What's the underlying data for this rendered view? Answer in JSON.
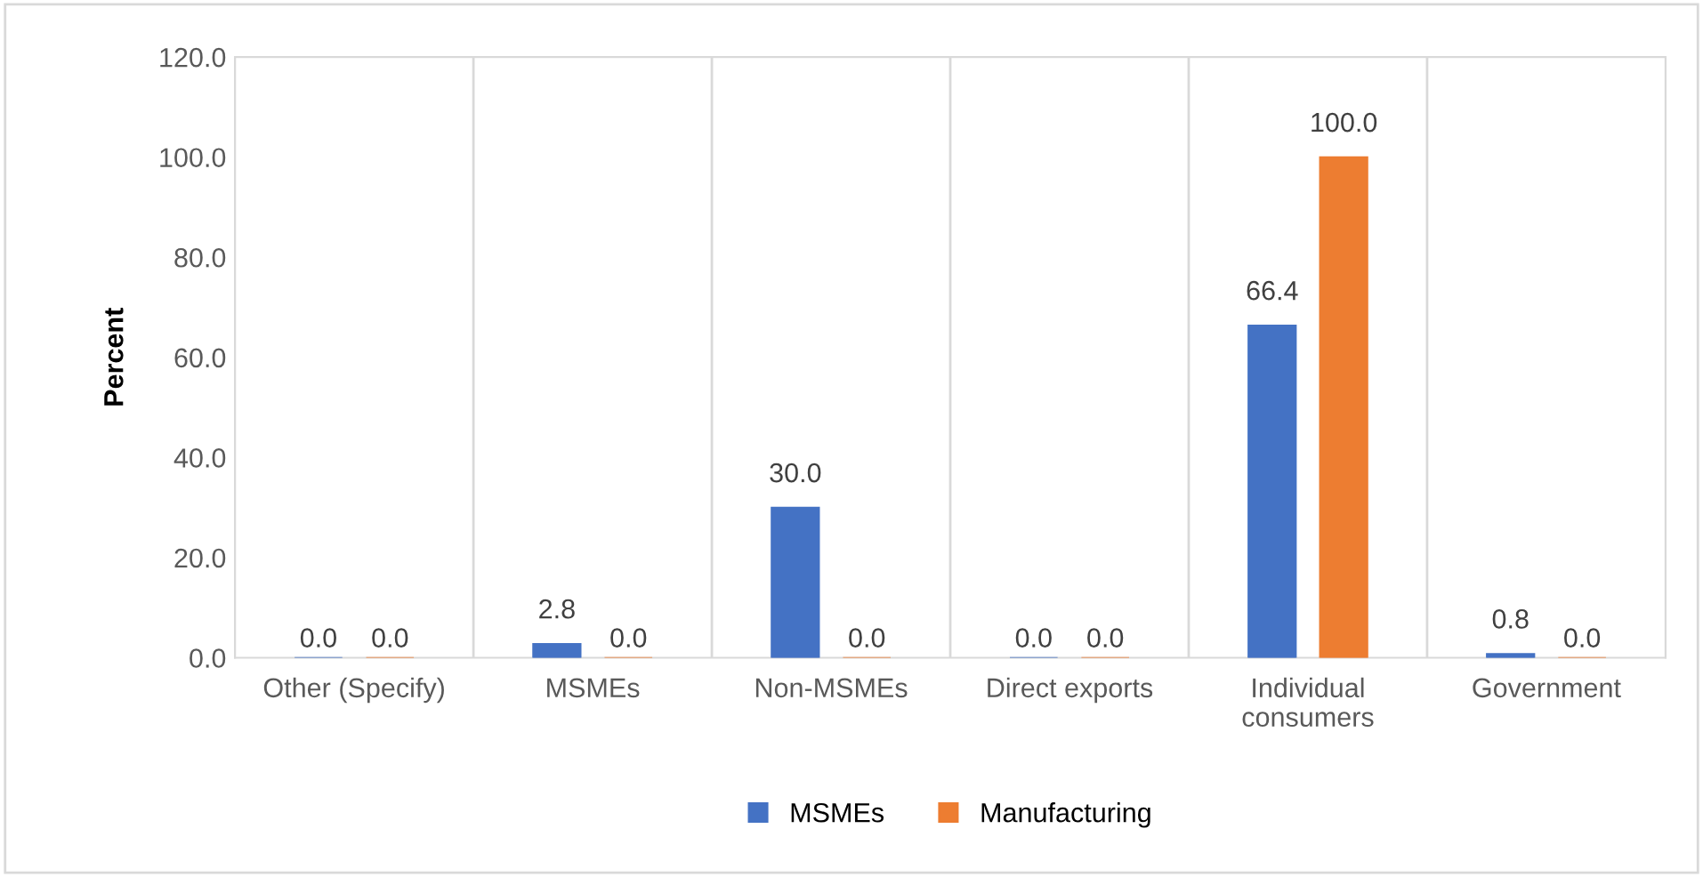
{
  "chart_data": {
    "type": "bar",
    "ylabel": "Percent",
    "categories": [
      "Other (Specify)",
      "MSMEs",
      "Non-MSMEs",
      "Direct exports",
      "Individual\nconsumers",
      "Government"
    ],
    "series": [
      {
        "name": "MSMEs",
        "color": "#4472c4",
        "values": [
          0.0,
          2.8,
          30.0,
          0.0,
          66.4,
          0.8
        ],
        "value_labels": [
          "0.0",
          "2.8",
          "30.0",
          "0.0",
          "66.4",
          "0.8"
        ]
      },
      {
        "name": "Manufacturing",
        "color": "#ed7d31",
        "values": [
          0.0,
          0.0,
          0.0,
          0.0,
          100.0,
          0.0
        ],
        "value_labels": [
          "0.0",
          "0.0",
          "0.0",
          "0.0",
          "100.0",
          "0.0"
        ]
      }
    ],
    "ylim": [
      0,
      120
    ],
    "yticks": [
      {
        "value": 0,
        "label": "0.0"
      },
      {
        "value": 20,
        "label": "20.0"
      },
      {
        "value": 40,
        "label": "40.0"
      },
      {
        "value": 60,
        "label": "60.0"
      },
      {
        "value": 80,
        "label": "80.0"
      },
      {
        "value": 100,
        "label": "100.0"
      },
      {
        "value": 120,
        "label": "120.0"
      }
    ],
    "grid": false,
    "legend": "bottom"
  }
}
